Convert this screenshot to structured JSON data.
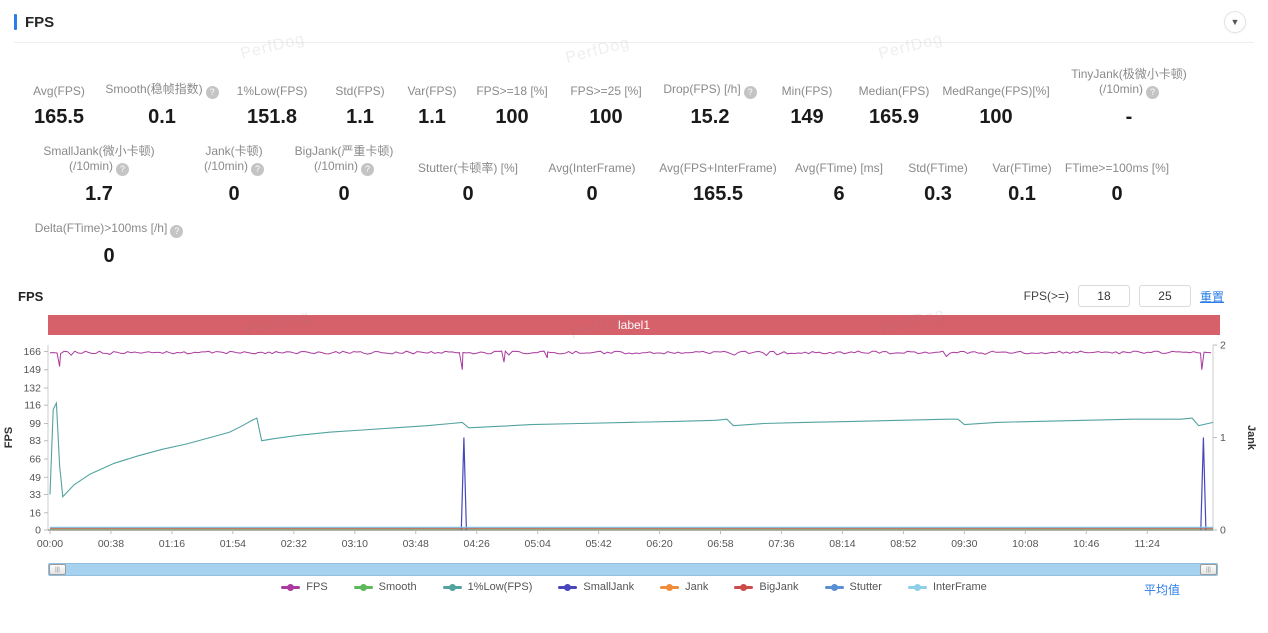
{
  "header": {
    "title": "FPS"
  },
  "watermark": "PerfDog",
  "stats_rows": [
    [
      {
        "label": "Avg(FPS)",
        "value": "165.5"
      },
      {
        "label": "Smooth(稳帧指数)",
        "help": true,
        "value": "0.1"
      },
      {
        "label": "1%Low(FPS)",
        "value": "151.8"
      },
      {
        "label": "Std(FPS)",
        "value": "1.1"
      },
      {
        "label": "Var(FPS)",
        "value": "1.1"
      },
      {
        "label": "FPS>=18 [%]",
        "value": "100"
      },
      {
        "label": "FPS>=25 [%]",
        "value": "100"
      },
      {
        "label": "Drop(FPS) [/h]",
        "help": true,
        "value": "15.2"
      },
      {
        "label": "Min(FPS)",
        "value": "149"
      },
      {
        "label": "Median(FPS)",
        "value": "165.9"
      },
      {
        "label": "MedRange(FPS)[%]",
        "value": "100"
      },
      {
        "label": "TinyJank(极微小卡顿)",
        "label2": "(/10min)",
        "help": true,
        "value": "-"
      }
    ],
    [
      {
        "label": "SmallJank(微小卡顿)",
        "label2": "(/10min)",
        "help": true,
        "value": "1.7"
      },
      {
        "label": "Jank(卡顿)",
        "label2": "(/10min)",
        "help": true,
        "value": "0"
      },
      {
        "label": "BigJank(严重卡顿)",
        "label2": "(/10min)",
        "help": true,
        "value": "0"
      },
      {
        "label": "Stutter(卡顿率) [%]",
        "value": "0"
      },
      {
        "label": "Avg(InterFrame)",
        "value": "0"
      },
      {
        "label": "Avg(FPS+InterFrame)",
        "value": "165.5"
      },
      {
        "label": "Avg(FTime) [ms]",
        "value": "6"
      },
      {
        "label": "Std(FTime)",
        "value": "0.3"
      },
      {
        "label": "Var(FTime)",
        "value": "0.1"
      },
      {
        "label": "FTime>=100ms [%]",
        "value": "0"
      }
    ],
    [
      {
        "label": "Delta(FTime)>100ms [/h]",
        "help": true,
        "value": "0"
      }
    ]
  ],
  "chart_section": {
    "heading": "FPS",
    "filter_label": "FPS(>=)",
    "filter_values": [
      "18",
      "25"
    ],
    "reset_label": "重置",
    "average_link": "平均值"
  },
  "chart_data": {
    "type": "line",
    "title": "FPS",
    "band_label": "label1",
    "band_color": "#d6616b",
    "x_ticks": [
      "00:00",
      "00:38",
      "01:16",
      "01:54",
      "02:32",
      "03:10",
      "03:48",
      "04:26",
      "05:04",
      "05:42",
      "06:20",
      "06:58",
      "07:36",
      "08:14",
      "08:52",
      "09:30",
      "10:08",
      "10:46",
      "11:24"
    ],
    "x_tick_interval_seconds": 38,
    "x_range_seconds": [
      0,
      725
    ],
    "y_axis_left": {
      "label": "FPS",
      "ticks": [
        0,
        16,
        33,
        49,
        66,
        83,
        99,
        116,
        132,
        149,
        166
      ],
      "range": [
        0,
        172
      ]
    },
    "y_axis_right": {
      "label": "Jank",
      "ticks": [
        0,
        1,
        2
      ],
      "range": [
        0,
        2
      ]
    },
    "series": [
      {
        "name": "FPS",
        "color": "#aa3a9e",
        "axis": "left",
        "style": "noisy",
        "base": 165.5,
        "noise_amplitude": 2.6,
        "dips": [
          [
            6,
            152
          ],
          [
            257,
            149
          ],
          [
            283,
            156
          ],
          [
            310,
            160
          ],
          [
            718,
            149
          ]
        ]
      },
      {
        "name": "Smooth",
        "color": "#5cb85c",
        "axis": "left",
        "style": "flat",
        "value": 0
      },
      {
        "name": "1%Low(FPS)",
        "color": "#52a3a0",
        "axis": "left",
        "style": "poly",
        "points": [
          [
            0,
            33
          ],
          [
            2,
            112
          ],
          [
            4,
            118
          ],
          [
            6,
            60
          ],
          [
            8,
            31
          ],
          [
            15,
            42
          ],
          [
            25,
            52
          ],
          [
            40,
            62
          ],
          [
            55,
            69
          ],
          [
            70,
            75
          ],
          [
            85,
            80
          ],
          [
            100,
            86
          ],
          [
            112,
            91
          ],
          [
            120,
            97
          ],
          [
            126,
            102
          ],
          [
            129,
            104
          ],
          [
            132,
            83
          ],
          [
            140,
            85
          ],
          [
            155,
            88
          ],
          [
            175,
            91
          ],
          [
            195,
            93
          ],
          [
            215,
            95
          ],
          [
            235,
            97
          ],
          [
            250,
            99
          ],
          [
            257,
            100
          ],
          [
            261,
            95
          ],
          [
            275,
            96
          ],
          [
            300,
            98
          ],
          [
            330,
            99
          ],
          [
            360,
            100
          ],
          [
            390,
            101
          ],
          [
            415,
            102
          ],
          [
            422,
            103
          ],
          [
            426,
            97
          ],
          [
            445,
            99
          ],
          [
            470,
            100
          ],
          [
            500,
            101
          ],
          [
            530,
            102
          ],
          [
            560,
            103
          ],
          [
            566,
            103
          ],
          [
            570,
            98
          ],
          [
            590,
            100
          ],
          [
            615,
            101
          ],
          [
            645,
            102
          ],
          [
            675,
            103
          ],
          [
            705,
            103
          ],
          [
            712,
            104
          ],
          [
            716,
            97
          ],
          [
            722,
            99
          ],
          [
            725,
            100
          ]
        ]
      },
      {
        "name": "SmallJank",
        "color": "#4747bb",
        "axis": "right",
        "style": "spikes",
        "spikes": [
          [
            258,
            1
          ],
          [
            719,
            1
          ]
        ]
      },
      {
        "name": "Jank",
        "color": "#ef8d3c",
        "axis": "right",
        "style": "flat",
        "value": 0
      },
      {
        "name": "BigJank",
        "color": "#cc4b4b",
        "axis": "right",
        "style": "flat",
        "value": 0
      },
      {
        "name": "Stutter",
        "color": "#5b8fd4",
        "axis": "right",
        "style": "flat",
        "value": 0
      },
      {
        "name": "InterFrame",
        "color": "#8ecfe8",
        "axis": "left",
        "style": "flat",
        "value": 0
      }
    ]
  }
}
